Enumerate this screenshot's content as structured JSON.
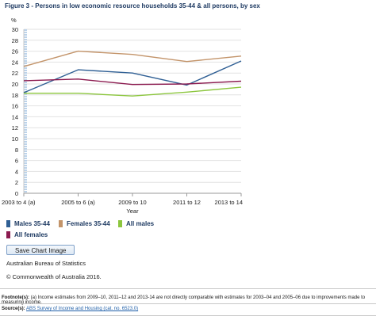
{
  "chart_data": {
    "type": "line",
    "title": "Figure 3 - Persons in low economic resource households 35-44 & all persons, by sex",
    "ylabel": "%",
    "xlabel": "Year",
    "categories": [
      "2003 to 4 (a)",
      "2005 to 6 (a)",
      "2009 to 10",
      "2011 to 12",
      "2013 to 14"
    ],
    "ylim": [
      0,
      30
    ],
    "yticks": [
      0,
      2,
      4,
      6,
      8,
      10,
      12,
      14,
      16,
      18,
      20,
      22,
      24,
      26,
      28,
      30
    ],
    "series": [
      {
        "name": "Males 35-44",
        "color": "#2f5f94",
        "values": [
          18.4,
          22.6,
          22.0,
          19.8,
          24.2
        ]
      },
      {
        "name": "Females 35-44",
        "color": "#c3946a",
        "values": [
          23.2,
          26.0,
          25.4,
          24.1,
          25.1
        ]
      },
      {
        "name": "All males",
        "color": "#8cc63e",
        "values": [
          18.3,
          18.3,
          17.8,
          18.5,
          19.4
        ]
      },
      {
        "name": "All females",
        "color": "#8b1a4f",
        "values": [
          20.6,
          20.9,
          19.9,
          20.0,
          20.5
        ]
      }
    ],
    "grid": "horizontal",
    "legend_position": "bottom"
  },
  "save_button_label": "Save Chart Image",
  "source": "Australian Bureau of Statistics",
  "copyright": "© Commonwealth of Australia 2016.",
  "footnote_label": "Footnote(s):",
  "footnote_text": "(a) Income estimates from 2009–10, 2011–12 and 2013-14 are not directly comparable with estimates for 2003–04 and 2005–06 due to improvements made to measuring income.",
  "source_label": "Source(s):",
  "source_link_text": "ABS Survey of Income and Housing (cat. no. 6523.0)"
}
